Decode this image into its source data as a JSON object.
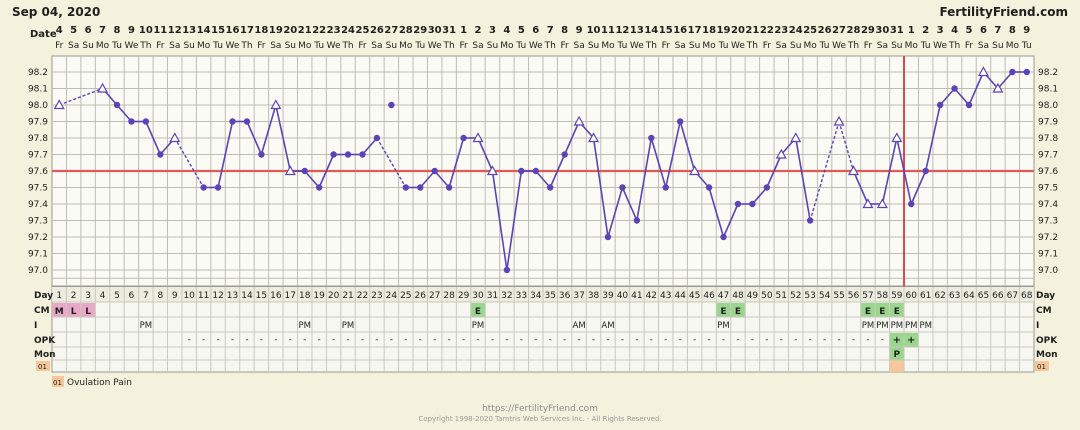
{
  "header": {
    "date": "Sep 04, 2020",
    "brand": "FertilityFriend.com"
  },
  "row_labels": {
    "date": "Date",
    "day": "Day",
    "cm": "CM",
    "i": "I",
    "opk": "OPK",
    "mon": "Mon"
  },
  "dates": [
    "4",
    "5",
    "6",
    "7",
    "8",
    "9",
    "10",
    "11",
    "12",
    "13",
    "14",
    "15",
    "16",
    "17",
    "18",
    "19",
    "20",
    "21",
    "22",
    "23",
    "24",
    "25",
    "26",
    "27",
    "28",
    "29",
    "30",
    "31",
    "1",
    "2",
    "3",
    "4",
    "5",
    "6",
    "7",
    "8",
    "9",
    "10",
    "11",
    "12",
    "13",
    "14",
    "15",
    "16",
    "17",
    "18",
    "19",
    "20",
    "21",
    "22",
    "23",
    "24",
    "25",
    "26",
    "27",
    "28",
    "29",
    "30",
    "31",
    "1",
    "2",
    "3",
    "4",
    "5",
    "6",
    "7",
    "8",
    "9",
    "10"
  ],
  "weekdays": [
    "Fr",
    "Sa",
    "Su",
    "Mo",
    "Tu",
    "We",
    "Th",
    "Fr",
    "Sa",
    "Su",
    "Mo",
    "Tu",
    "We",
    "Th",
    "Fr",
    "Sa",
    "Su",
    "Mo",
    "Tu",
    "We",
    "Th",
    "Fr",
    "Sa",
    "Su",
    "Mo",
    "Tu",
    "We",
    "Th",
    "Fr",
    "Sa",
    "Su",
    "Mo",
    "Tu",
    "We",
    "Th",
    "Fr",
    "Sa",
    "Su",
    "Mo",
    "Tu",
    "We",
    "Th",
    "Fr",
    "Sa",
    "Su",
    "Mo",
    "Tu",
    "We",
    "Th",
    "Fr",
    "Sa",
    "Su",
    "Mo",
    "Tu",
    "We",
    "Th",
    "Fr",
    "Sa",
    "Su",
    "Mo",
    "Tu",
    "We",
    "Th",
    "Fr",
    "Sa",
    "Su",
    "Mo",
    "Tu",
    "We"
  ],
  "chart_data": {
    "type": "line",
    "ylim": [
      96.9,
      98.3
    ],
    "y_ticks": [
      "97.0",
      "97.1",
      "97.2",
      "97.3",
      "97.4",
      "97.5",
      "97.6",
      "97.7",
      "97.8",
      "97.9",
      "98.0",
      "98.1",
      "98.2"
    ],
    "x": [
      1,
      2,
      3,
      4,
      5,
      6,
      7,
      8,
      9,
      10,
      11,
      12,
      13,
      14,
      15,
      16,
      17,
      18,
      19,
      20,
      21,
      22,
      23,
      24,
      25,
      26,
      27,
      28,
      29,
      30,
      31,
      32,
      33,
      34,
      35,
      36,
      37,
      38,
      39,
      40,
      41,
      42,
      43,
      44,
      45,
      46,
      47,
      48,
      49,
      50,
      51,
      52,
      53,
      54,
      55,
      56,
      57,
      58,
      59,
      60,
      61,
      62,
      63,
      64,
      65,
      66,
      67,
      68
    ],
    "temps": [
      98.0,
      null,
      null,
      98.1,
      98.0,
      97.9,
      97.9,
      97.7,
      97.8,
      null,
      97.5,
      97.5,
      97.9,
      97.9,
      97.7,
      98.0,
      97.6,
      97.6,
      97.5,
      97.7,
      97.7,
      97.7,
      97.8,
      98.0,
      97.5,
      97.5,
      97.6,
      97.5,
      97.8,
      97.8,
      97.6,
      97.0,
      97.6,
      97.6,
      97.5,
      97.7,
      97.9,
      97.8,
      97.2,
      97.5,
      97.3,
      97.8,
      97.5,
      97.9,
      97.6,
      97.5,
      97.2,
      97.4,
      97.4,
      97.5,
      97.7,
      97.8,
      97.3,
      null,
      97.9,
      97.6,
      97.4,
      97.4,
      97.8,
      97.4,
      97.6,
      98.0,
      98.1,
      98.0,
      98.2,
      98.1,
      98.2,
      98.2
    ],
    "markers": [
      "tri",
      "",
      "",
      "tri",
      "dot",
      "dot",
      "dot",
      "dot",
      "tri",
      "",
      "dot",
      "dot",
      "dot",
      "dot",
      "dot",
      "tri",
      "tri",
      "dot",
      "dot",
      "dot",
      "dot",
      "dot",
      "dot",
      "dot",
      "dot",
      "dot",
      "dot",
      "dot",
      "dot",
      "tri",
      "tri",
      "dot",
      "dot",
      "dot",
      "dot",
      "dot",
      "tri",
      "tri",
      "dot",
      "dot",
      "dot",
      "dot",
      "dot",
      "dot",
      "tri",
      "dot",
      "dot",
      "dot",
      "dot",
      "dot",
      "tri",
      "tri",
      "dot",
      "",
      "tri",
      "tri",
      "tri",
      "tri",
      "tri",
      "dot",
      "dot",
      "dot",
      "dot",
      "dot",
      "tri",
      "tri",
      "dot",
      "dot"
    ],
    "solid_segments": [
      [
        4,
        5
      ],
      [
        5,
        6
      ],
      [
        6,
        7
      ],
      [
        7,
        8
      ],
      [
        8,
        9
      ],
      [
        11,
        12
      ],
      [
        12,
        13
      ],
      [
        13,
        14
      ],
      [
        14,
        15
      ],
      [
        15,
        16
      ],
      [
        16,
        17
      ],
      [
        17,
        18
      ],
      [
        18,
        19
      ],
      [
        19,
        20
      ],
      [
        20,
        21
      ],
      [
        21,
        22
      ],
      [
        22,
        23
      ],
      [
        25,
        26
      ],
      [
        26,
        27
      ],
      [
        27,
        28
      ],
      [
        28,
        29
      ],
      [
        29,
        30
      ],
      [
        30,
        31
      ],
      [
        31,
        32
      ],
      [
        32,
        33
      ],
      [
        33,
        34
      ],
      [
        34,
        35
      ],
      [
        35,
        36
      ],
      [
        36,
        37
      ],
      [
        37,
        38
      ],
      [
        38,
        39
      ],
      [
        39,
        40
      ],
      [
        40,
        41
      ],
      [
        41,
        42
      ],
      [
        42,
        43
      ],
      [
        43,
        44
      ],
      [
        44,
        45
      ],
      [
        45,
        46
      ],
      [
        46,
        47
      ],
      [
        47,
        48
      ],
      [
        48,
        49
      ],
      [
        49,
        50
      ],
      [
        50,
        51
      ],
      [
        51,
        52
      ],
      [
        52,
        53
      ],
      [
        56,
        57
      ],
      [
        57,
        58
      ],
      [
        58,
        59
      ],
      [
        59,
        60
      ],
      [
        60,
        61
      ],
      [
        61,
        62
      ],
      [
        62,
        63
      ],
      [
        63,
        64
      ],
      [
        64,
        65
      ],
      [
        65,
        66
      ],
      [
        66,
        67
      ],
      [
        67,
        68
      ]
    ],
    "dashed_segments": [
      [
        1,
        4
      ],
      [
        9,
        11
      ],
      [
        23,
        25
      ],
      [
        53,
        55
      ],
      [
        55,
        56
      ]
    ],
    "coverline": 97.6,
    "ovulation_day": 60,
    "days": [
      "1",
      "2",
      "3",
      "4",
      "5",
      "6",
      "7",
      "8",
      "9",
      "10",
      "11",
      "12",
      "13",
      "14",
      "15",
      "16",
      "17",
      "18",
      "19",
      "20",
      "21",
      "22",
      "23",
      "24",
      "25",
      "26",
      "27",
      "28",
      "29",
      "30",
      "31",
      "32",
      "33",
      "34",
      "35",
      "36",
      "37",
      "38",
      "39",
      "40",
      "41",
      "42",
      "43",
      "44",
      "45",
      "46",
      "47",
      "48",
      "49",
      "50",
      "51",
      "52",
      "53",
      "54",
      "55",
      "56",
      "57",
      "58",
      "59",
      "60",
      "61",
      "62",
      "63",
      "64",
      "65",
      "66",
      "67",
      "68"
    ]
  },
  "cm_entries": [
    {
      "day": 1,
      "text": "M",
      "color": "#e9a8c8"
    },
    {
      "day": 2,
      "text": "L",
      "color": "#e9a8c8"
    },
    {
      "day": 3,
      "text": "L",
      "color": "#e9a8c8"
    },
    {
      "day": 30,
      "text": "E",
      "color": "#9bd68f"
    },
    {
      "day": 47,
      "text": "E",
      "color": "#9bd68f"
    },
    {
      "day": 48,
      "text": "E",
      "color": "#9bd68f"
    },
    {
      "day": 57,
      "text": "E",
      "color": "#9bd68f"
    },
    {
      "day": 58,
      "text": "E",
      "color": "#9bd68f"
    },
    {
      "day": 59,
      "text": "E",
      "color": "#9bd68f"
    }
  ],
  "i_entries": [
    {
      "day": 7,
      "text": "PM"
    },
    {
      "day": 18,
      "text": "PM"
    },
    {
      "day": 21,
      "text": "PM"
    },
    {
      "day": 30,
      "text": "PM"
    },
    {
      "day": 37,
      "text": "AM"
    },
    {
      "day": 39,
      "text": "AM"
    },
    {
      "day": 47,
      "text": "PM"
    },
    {
      "day": 57,
      "text": "PM"
    },
    {
      "day": 58,
      "text": "PM"
    },
    {
      "day": 59,
      "text": "PM"
    },
    {
      "day": 60,
      "text": "PM"
    },
    {
      "day": 61,
      "text": "PM"
    }
  ],
  "opk_neg_days": [
    10,
    11,
    12,
    13,
    14,
    15,
    16,
    17,
    18,
    19,
    20,
    21,
    22,
    23,
    24,
    25,
    26,
    27,
    28,
    29,
    30,
    31,
    32,
    33,
    34,
    35,
    36,
    37,
    38,
    39,
    40,
    41,
    42,
    43,
    44,
    45,
    46,
    47,
    48,
    49,
    50,
    51,
    52,
    53,
    54,
    55,
    56,
    57,
    58
  ],
  "opk_pos": [
    {
      "day": 59,
      "text": "+"
    },
    {
      "day": 60,
      "text": "+"
    }
  ],
  "opk_pos_color": "#9bd68f",
  "mon_entries": [
    {
      "day": 59,
      "text": "P",
      "color": "#9bd68f"
    }
  ],
  "ovulation_pain_days": [
    59
  ],
  "ovulation_pain_color": "#f7c79b",
  "legend": {
    "code": "01",
    "text": "Ovulation Pain"
  },
  "footer": {
    "url": "https://FertilityFriend.com",
    "copyright": "Copyright 1998-2020 Tamtris Web Services Inc. - All Rights Reserved."
  },
  "colors": {
    "line": "#5b44b5",
    "coverline": "#e05a5a",
    "ovulation": "#d84848",
    "grid": "#bdbdb4",
    "panel": "#fbfbf6",
    "background": "#f4f2dc",
    "cm_pink": "#e9a8c8",
    "green": "#9bd68f"
  }
}
